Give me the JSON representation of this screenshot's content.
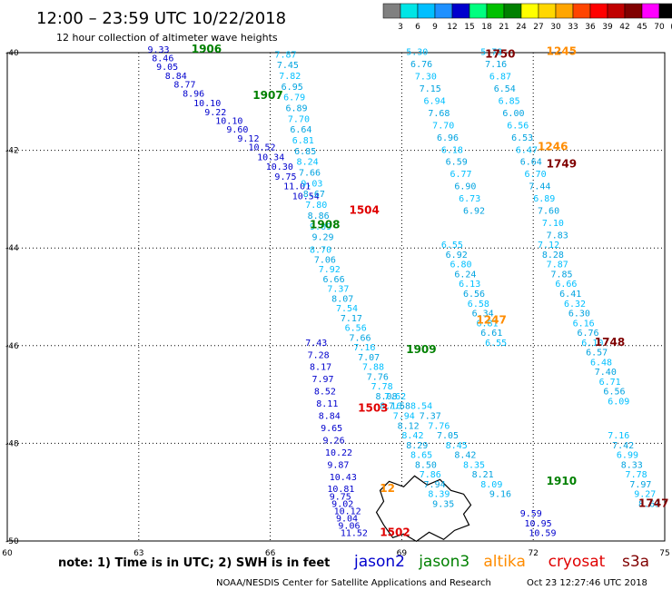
{
  "header": {
    "title": "12:00 – 23:59 UTC 10/22/2018",
    "subtitle": "12 hour collection of altimeter wave heights"
  },
  "colorbar": {
    "ticks": [
      "3",
      "6",
      "9",
      "12",
      "15",
      "18",
      "21",
      "24",
      "27",
      "30",
      "33",
      "36",
      "39",
      "42",
      "45",
      "70",
      "(ft)"
    ],
    "colors": [
      "#808080",
      "#00e5e5",
      "#00bfff",
      "#1e90ff",
      "#0000cd",
      "#00ff7f",
      "#00c000",
      "#008000",
      "#ffff00",
      "#ffd700",
      "#ffa500",
      "#ff4500",
      "#ff0000",
      "#c00000",
      "#800000",
      "#ff00ff",
      "#000000"
    ]
  },
  "footer": {
    "note": "note: 1) Time is in UTC; 2) SWH is in feet",
    "agency": "NOAA/NESDIS Center for Satellite Applications and Research",
    "timestamp": "Oct 23 12:27:46 UTC 2018"
  },
  "legend": [
    {
      "name": "jason2",
      "color": "#0000cd"
    },
    {
      "name": "jason3",
      "color": "#008000"
    },
    {
      "name": "altika",
      "color": "#ff8c00"
    },
    {
      "name": "cryosat",
      "color": "#e00000"
    },
    {
      "name": "s3a",
      "color": "#800000"
    }
  ],
  "chart_data": {
    "type": "scatter",
    "title": "12:00 – 23:59 UTC 10/22/2018",
    "subtitle": "12 hour collection of altimeter wave heights",
    "xlim": [
      60,
      75
    ],
    "ylim": [
      -50,
      -40
    ],
    "x_ticks": [
      60,
      63,
      66,
      69,
      72,
      75
    ],
    "y_ticks": [
      -40,
      -42,
      -44,
      -46,
      -48,
      -50
    ],
    "x_tick_labels": [
      "60",
      "63",
      "66",
      "69",
      "72",
      "75"
    ],
    "y_tick_labels": [
      "-40",
      "-42",
      "-44",
      "-46",
      "-48",
      "-50"
    ],
    "grid": true,
    "colors": {
      "jason2": "#0000cd",
      "jason3": "#008000",
      "altika": "#ff8c00",
      "cryosat": "#e00000",
      "s3a": "#800000",
      "swh_low": "#00bfff"
    },
    "tracks": [
      {
        "series": "jason2",
        "x": [
          63.2,
          63.3,
          63.4,
          63.6,
          63.8,
          64.0,
          64.25,
          64.5,
          64.75,
          65.0,
          65.25,
          65.5,
          65.7,
          65.9,
          66.1,
          66.3,
          66.5
        ],
        "y": [
          -40.0,
          -40.18,
          -40.35,
          -40.54,
          -40.72,
          -40.9,
          -41.1,
          -41.28,
          -41.46,
          -41.64,
          -41.82,
          -42.0,
          -42.2,
          -42.4,
          -42.6,
          -42.8,
          -43.0
        ],
        "values": [
          "9.33",
          "8.46",
          "9.05",
          "8.84",
          "8.77",
          "8.96",
          "10.10",
          "9.22",
          "10.10",
          "9.60",
          "9.12",
          "10.52",
          "10.34",
          "10.30",
          "9.75",
          "11.01",
          "10.54"
        ]
      },
      {
        "series": "jason3",
        "x": [
          66.1,
          66.15,
          66.2,
          66.25,
          66.3,
          66.35,
          66.4,
          66.45,
          66.5,
          66.55,
          66.6,
          66.65,
          66.7,
          66.75,
          66.8,
          66.85,
          66.9,
          66.95
        ],
        "y": [
          -40.1,
          -40.32,
          -40.54,
          -40.76,
          -40.98,
          -41.2,
          -41.42,
          -41.64,
          -41.86,
          -42.08,
          -42.3,
          -42.52,
          -42.74,
          -42.96,
          -43.18,
          -43.4,
          -43.62,
          -43.84
        ],
        "values": [
          "7.87",
          "7.45",
          "7.82",
          "6.95",
          "6.79",
          "6.89",
          "7.70",
          "6.64",
          "6.81",
          "6.85",
          "8.24",
          "7.66",
          "9.03",
          "8.67",
          "7.80",
          "8.86",
          "9.09",
          "9.29"
        ]
      },
      {
        "series": "altika",
        "x": [
          69.1,
          69.2,
          69.3,
          69.4,
          69.5,
          69.6,
          69.7,
          69.8,
          69.9,
          70.0,
          70.1,
          70.2,
          70.3,
          70.4
        ],
        "y": [
          -40.05,
          -40.3,
          -40.55,
          -40.8,
          -41.05,
          -41.3,
          -41.55,
          -41.8,
          -42.05,
          -42.3,
          -42.55,
          -42.8,
          -43.05,
          -43.3
        ],
        "values": [
          "5.30",
          "6.76",
          "7.30",
          "7.15",
          "6.94",
          "7.68",
          "7.70",
          "6.96",
          "6.18",
          "6.59",
          "6.77",
          "6.90",
          "6.73",
          "6.92"
        ]
      },
      {
        "series": "cryosat",
        "x": [
          70.8,
          70.9,
          71.0,
          71.1,
          71.2,
          71.3,
          71.4,
          71.5,
          71.6,
          71.7,
          71.8,
          71.9,
          72.0,
          72.1,
          72.2,
          72.3
        ],
        "y": [
          -40.05,
          -40.3,
          -40.55,
          -40.8,
          -41.05,
          -41.3,
          -41.55,
          -41.8,
          -42.05,
          -42.3,
          -42.55,
          -42.8,
          -43.05,
          -43.3,
          -43.55,
          -43.8
        ],
        "values": [
          "5.73",
          "7.16",
          "6.87",
          "6.54",
          "6.85",
          "6.00",
          "6.56",
          "6.53",
          "6.47",
          "6.64",
          "6.70",
          "7.44",
          "6.89",
          "7.60",
          "7.10",
          "7.83"
        ]
      },
      {
        "series": "s3a",
        "x": [
          66.9,
          67.0,
          67.1,
          67.2,
          67.3,
          67.4,
          67.5,
          67.6,
          67.7,
          67.8,
          67.9,
          68.0,
          68.1,
          68.2,
          68.3,
          68.4,
          68.5
        ],
        "y": [
          -44.1,
          -44.3,
          -44.5,
          -44.7,
          -44.9,
          -45.1,
          -45.3,
          -45.5,
          -45.7,
          -45.9,
          -46.1,
          -46.3,
          -46.5,
          -46.7,
          -46.9,
          -47.1,
          -47.3
        ],
        "values": [
          "8.70",
          "7.06",
          "7.92",
          "6.66",
          "7.37",
          "8.07",
          "7.54",
          "7.17",
          "6.56",
          "7.66",
          "7.16",
          "7.07",
          "7.88",
          "7.76",
          "7.78",
          "8.08",
          "8.16"
        ]
      },
      {
        "series": "altika",
        "x": [
          69.9,
          70.0,
          70.1,
          70.2,
          70.3,
          70.4,
          70.5,
          70.6,
          70.7,
          70.8,
          70.9
        ],
        "y": [
          -44.0,
          -44.2,
          -44.4,
          -44.6,
          -44.8,
          -45.0,
          -45.2,
          -45.4,
          -45.6,
          -45.8,
          -46.0
        ],
        "values": [
          "6.55",
          "6.92",
          "6.80",
          "6.24",
          "6.13",
          "6.56",
          "6.58",
          "6.34",
          "6.81",
          "6.61",
          "6.55"
        ]
      },
      {
        "series": "cryosat",
        "x": [
          72.1,
          72.2,
          72.3,
          72.4,
          72.5,
          72.6,
          72.7,
          72.8,
          72.9,
          73.0,
          73.1,
          73.2,
          73.3,
          73.4,
          73.5,
          73.6,
          73.7
        ],
        "y": [
          -44.0,
          -44.2,
          -44.4,
          -44.6,
          -44.8,
          -45.0,
          -45.2,
          -45.4,
          -45.6,
          -45.8,
          -46.0,
          -46.2,
          -46.4,
          -46.6,
          -46.8,
          -47.0,
          -47.2
        ],
        "values": [
          "7.12",
          "8.28",
          "7.87",
          "7.85",
          "6.66",
          "6.41",
          "6.32",
          "6.30",
          "6.16",
          "6.76",
          "6.10",
          "6.57",
          "6.48",
          "7.40",
          "6.71",
          "6.56",
          "6.09"
        ]
      },
      {
        "series": "jason2",
        "x": [
          66.8,
          66.85,
          66.9,
          66.95,
          67.0,
          67.05,
          67.1,
          67.15,
          67.2,
          67.25,
          67.3,
          67.35
        ],
        "y": [
          -46.0,
          -46.25,
          -46.5,
          -46.75,
          -47.0,
          -47.25,
          -47.5,
          -47.75,
          -48.0,
          -48.25,
          -48.5,
          -48.75
        ],
        "values": [
          "7.43",
          "7.28",
          "8.17",
          "7.97",
          "8.52",
          "8.11",
          "8.84",
          "9.65",
          "9.26",
          "10.22",
          "9.87",
          "10.43"
        ]
      },
      {
        "series": "jason3",
        "x": [
          68.6,
          68.7,
          68.8,
          68.9,
          69.0,
          69.1,
          69.2,
          69.3,
          69.4,
          69.5,
          69.6,
          69.7
        ],
        "y": [
          -47.1,
          -47.3,
          -47.5,
          -47.7,
          -47.9,
          -48.1,
          -48.3,
          -48.5,
          -48.7,
          -48.9,
          -49.1,
          -49.3
        ],
        "values": [
          "7.62",
          "7.58",
          "7.94",
          "8.12",
          "8.42",
          "8.29",
          "8.65",
          "8.50",
          "7.86",
          "7.94",
          "8.39",
          "9.35"
        ]
      },
      {
        "series": "cryosat",
        "x": [
          69.2,
          69.4,
          69.6,
          69.8,
          70.0,
          70.2,
          70.4,
          70.6,
          70.8,
          71.0
        ],
        "y": [
          -47.3,
          -47.5,
          -47.7,
          -47.9,
          -48.1,
          -48.3,
          -48.5,
          -48.7,
          -48.9,
          -49.1
        ],
        "values": [
          "8.54",
          "7.37",
          "7.76",
          "7.05",
          "8.45",
          "8.42",
          "8.35",
          "8.21",
          "8.09",
          "9.16"
        ]
      },
      {
        "series": "s3a",
        "x": [
          73.7,
          73.8,
          73.9,
          74.0,
          74.1,
          74.2,
          74.3,
          74.4
        ],
        "y": [
          -47.9,
          -48.1,
          -48.3,
          -48.5,
          -48.7,
          -48.9,
          -49.1,
          -49.3
        ],
        "values": [
          "7.16",
          "7.42",
          "6.99",
          "8.33",
          "7.78",
          "7.97",
          "9.27",
          "8.63"
        ]
      },
      {
        "series": "jason2",
        "x": [
          67.3,
          67.35,
          67.4,
          67.45,
          67.5,
          67.55,
          67.6
        ],
        "y": [
          -49.0,
          -49.15,
          -49.3,
          -49.45,
          -49.6,
          -49.75,
          -49.9
        ],
        "values": [
          "10.81",
          "9.75",
          "9.02",
          "10.12",
          "9.04",
          "9.06",
          "11.52"
        ]
      },
      {
        "series": "jason2",
        "x": [
          71.7,
          71.8,
          71.9
        ],
        "y": [
          -49.5,
          -49.7,
          -49.9
        ],
        "values": [
          "9.59",
          "10.95",
          "10.59"
        ]
      }
    ],
    "time_labels": [
      {
        "text": "1906",
        "x": 64.2,
        "y": -40.0,
        "series": "jason3"
      },
      {
        "text": "1907",
        "x": 65.6,
        "y": -40.95,
        "series": "jason3"
      },
      {
        "text": "1750",
        "x": 70.9,
        "y": -40.1,
        "series": "s3a"
      },
      {
        "text": "1245",
        "x": 72.3,
        "y": -40.05,
        "series": "altika"
      },
      {
        "text": "1246",
        "x": 72.1,
        "y": -42.0,
        "series": "altika"
      },
      {
        "text": "1749",
        "x": 72.3,
        "y": -42.35,
        "series": "s3a"
      },
      {
        "text": "1504",
        "x": 67.8,
        "y": -43.3,
        "series": "cryosat"
      },
      {
        "text": "1908",
        "x": 66.9,
        "y": -43.6,
        "series": "jason3"
      },
      {
        "text": "1247",
        "x": 70.7,
        "y": -45.55,
        "series": "altika"
      },
      {
        "text": "1748",
        "x": 73.4,
        "y": -46.0,
        "series": "s3a"
      },
      {
        "text": "1909",
        "x": 69.1,
        "y": -46.15,
        "series": "jason3"
      },
      {
        "text": "1503",
        "x": 68.0,
        "y": -47.35,
        "series": "cryosat"
      },
      {
        "text": "1910",
        "x": 72.3,
        "y": -48.85,
        "series": "jason3"
      },
      {
        "text": "1747",
        "x": 74.4,
        "y": -49.3,
        "series": "s3a"
      },
      {
        "text": "12",
        "x": 68.5,
        "y": -49.0,
        "series": "altika"
      },
      {
        "text": "1502",
        "x": 68.5,
        "y": -49.9,
        "series": "cryosat"
      }
    ],
    "annotations": [
      {
        "type": "island",
        "name": "Kerguelen Islands",
        "x": 69.5,
        "y": -49.3
      }
    ]
  }
}
